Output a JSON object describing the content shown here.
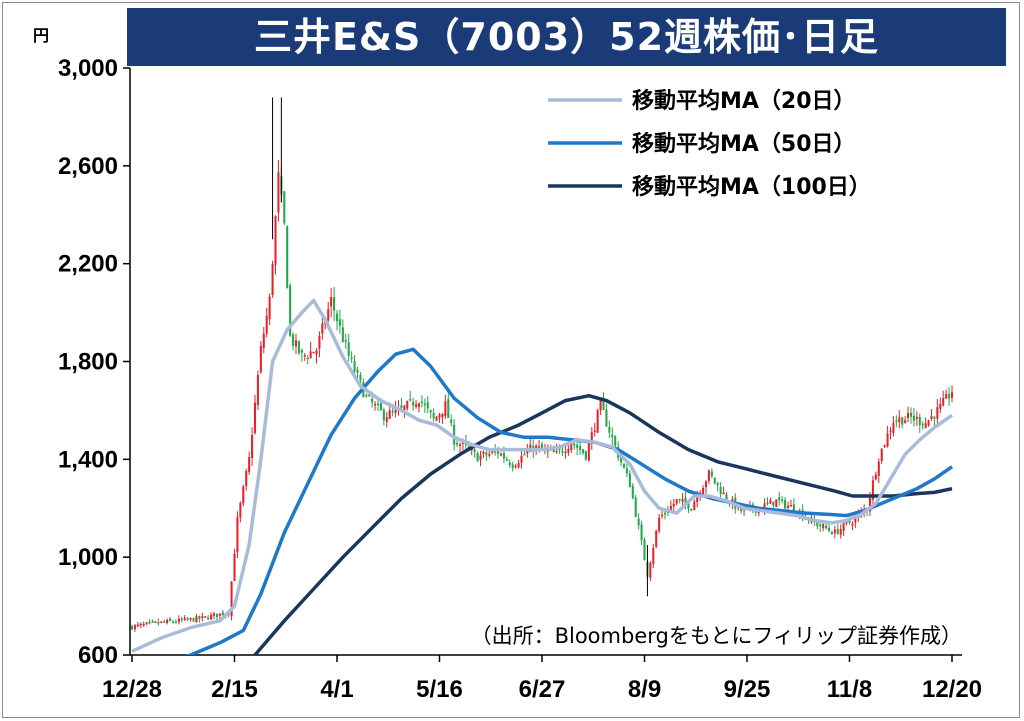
{
  "title": "三井E&S（7003）52週株価･日足",
  "unit_label": "円",
  "source_note": "（出所：Bloombergをもとにフィリップ証券作成）",
  "chart_data": {
    "type": "candlestick",
    "title": "三井E&S（7003）52週株価･日足",
    "ylabel": "円",
    "ylim": [
      600,
      3000
    ],
    "y_ticks": [
      600,
      1000,
      1400,
      1800,
      2200,
      2600,
      3000
    ],
    "y_tick_labels": [
      "600",
      "1,000",
      "1,400",
      "1,800",
      "2,200",
      "2,600",
      "3,000"
    ],
    "x_tick_labels": [
      "12/28",
      "2/15",
      "4/1",
      "5/16",
      "6/27",
      "8/9",
      "9/25",
      "11/8",
      "12/20"
    ],
    "legend": [
      {
        "name": "移動平均MA（20日）",
        "color": "#a8bcd9"
      },
      {
        "name": "移動平均MA（50日）",
        "color": "#1f78c8"
      },
      {
        "name": "移動平均MA（100日）",
        "color": "#1a355e"
      }
    ],
    "legend_position": "top-right",
    "candle_colors": {
      "up": "#e8202a",
      "down": "#1ea84a"
    },
    "close_anchors": [
      [
        0,
        715
      ],
      [
        8,
        730
      ],
      [
        16,
        740
      ],
      [
        24,
        750
      ],
      [
        33,
        775
      ],
      [
        36,
        1150
      ],
      [
        40,
        1400
      ],
      [
        44,
        1850
      ],
      [
        47,
        2050
      ],
      [
        50,
        2550
      ],
      [
        52,
        2350
      ],
      [
        54,
        1900
      ],
      [
        58,
        1820
      ],
      [
        63,
        1850
      ],
      [
        68,
        2050
      ],
      [
        74,
        1820
      ],
      [
        80,
        1650
      ],
      [
        86,
        1580
      ],
      [
        92,
        1600
      ],
      [
        98,
        1650
      ],
      [
        103,
        1560
      ],
      [
        107,
        1620
      ],
      [
        110,
        1480
      ],
      [
        118,
        1410
      ],
      [
        125,
        1430
      ],
      [
        130,
        1380
      ],
      [
        137,
        1450
      ],
      [
        145,
        1420
      ],
      [
        150,
        1470
      ],
      [
        155,
        1420
      ],
      [
        160,
        1620
      ],
      [
        165,
        1450
      ],
      [
        170,
        1300
      ],
      [
        173,
        1120
      ],
      [
        176,
        930
      ],
      [
        180,
        1160
      ],
      [
        186,
        1230
      ],
      [
        191,
        1210
      ],
      [
        197,
        1340
      ],
      [
        203,
        1240
      ],
      [
        208,
        1190
      ],
      [
        214,
        1200
      ],
      [
        220,
        1230
      ],
      [
        226,
        1200
      ],
      [
        233,
        1140
      ],
      [
        240,
        1100
      ],
      [
        246,
        1150
      ],
      [
        251,
        1200
      ],
      [
        255,
        1410
      ],
      [
        260,
        1560
      ],
      [
        266,
        1570
      ],
      [
        271,
        1550
      ],
      [
        276,
        1610
      ],
      [
        280,
        1680
      ]
    ],
    "ma20": [
      [
        0,
        615
      ],
      [
        10,
        670
      ],
      [
        20,
        712
      ],
      [
        30,
        740
      ],
      [
        35,
        800
      ],
      [
        40,
        1050
      ],
      [
        44,
        1400
      ],
      [
        48,
        1800
      ],
      [
        53,
        1930
      ],
      [
        58,
        2000
      ],
      [
        62,
        2050
      ],
      [
        66,
        1970
      ],
      [
        72,
        1820
      ],
      [
        78,
        1700
      ],
      [
        85,
        1640
      ],
      [
        92,
        1600
      ],
      [
        98,
        1560
      ],
      [
        104,
        1540
      ],
      [
        110,
        1490
      ],
      [
        116,
        1460
      ],
      [
        122,
        1440
      ],
      [
        128,
        1440
      ],
      [
        134,
        1440
      ],
      [
        140,
        1440
      ],
      [
        146,
        1450
      ],
      [
        152,
        1480
      ],
      [
        158,
        1470
      ],
      [
        164,
        1450
      ],
      [
        170,
        1380
      ],
      [
        175,
        1270
      ],
      [
        180,
        1200
      ],
      [
        186,
        1180
      ],
      [
        192,
        1250
      ],
      [
        197,
        1250
      ],
      [
        203,
        1230
      ],
      [
        209,
        1200
      ],
      [
        215,
        1190
      ],
      [
        221,
        1180
      ],
      [
        227,
        1170
      ],
      [
        233,
        1150
      ],
      [
        239,
        1140
      ],
      [
        244,
        1150
      ],
      [
        249,
        1175
      ],
      [
        254,
        1220
      ],
      [
        259,
        1320
      ],
      [
        264,
        1420
      ],
      [
        269,
        1480
      ],
      [
        274,
        1530
      ],
      [
        280,
        1580
      ]
    ],
    "ma50": [
      [
        0,
        520
      ],
      [
        20,
        600
      ],
      [
        30,
        650
      ],
      [
        38,
        700
      ],
      [
        44,
        850
      ],
      [
        52,
        1100
      ],
      [
        60,
        1300
      ],
      [
        68,
        1500
      ],
      [
        76,
        1650
      ],
      [
        84,
        1760
      ],
      [
        90,
        1830
      ],
      [
        96,
        1850
      ],
      [
        102,
        1780
      ],
      [
        110,
        1650
      ],
      [
        118,
        1570
      ],
      [
        126,
        1510
      ],
      [
        134,
        1490
      ],
      [
        142,
        1490
      ],
      [
        150,
        1480
      ],
      [
        158,
        1470
      ],
      [
        166,
        1440
      ],
      [
        174,
        1380
      ],
      [
        182,
        1320
      ],
      [
        190,
        1270
      ],
      [
        198,
        1240
      ],
      [
        206,
        1220
      ],
      [
        214,
        1200
      ],
      [
        222,
        1190
      ],
      [
        230,
        1180
      ],
      [
        238,
        1175
      ],
      [
        244,
        1170
      ],
      [
        250,
        1190
      ],
      [
        256,
        1220
      ],
      [
        262,
        1250
      ],
      [
        268,
        1280
      ],
      [
        274,
        1320
      ],
      [
        280,
        1370
      ]
    ],
    "ma100": [
      [
        0,
        420
      ],
      [
        20,
        490
      ],
      [
        35,
        560
      ],
      [
        42,
        600
      ],
      [
        52,
        740
      ],
      [
        62,
        870
      ],
      [
        72,
        1000
      ],
      [
        82,
        1120
      ],
      [
        92,
        1240
      ],
      [
        102,
        1340
      ],
      [
        112,
        1420
      ],
      [
        122,
        1490
      ],
      [
        132,
        1540
      ],
      [
        140,
        1590
      ],
      [
        148,
        1640
      ],
      [
        156,
        1660
      ],
      [
        162,
        1640
      ],
      [
        170,
        1590
      ],
      [
        180,
        1510
      ],
      [
        190,
        1440
      ],
      [
        200,
        1390
      ],
      [
        210,
        1360
      ],
      [
        220,
        1330
      ],
      [
        230,
        1300
      ],
      [
        240,
        1270
      ],
      [
        246,
        1250
      ],
      [
        252,
        1250
      ],
      [
        260,
        1250
      ],
      [
        268,
        1260
      ],
      [
        274,
        1265
      ],
      [
        280,
        1280
      ]
    ]
  }
}
